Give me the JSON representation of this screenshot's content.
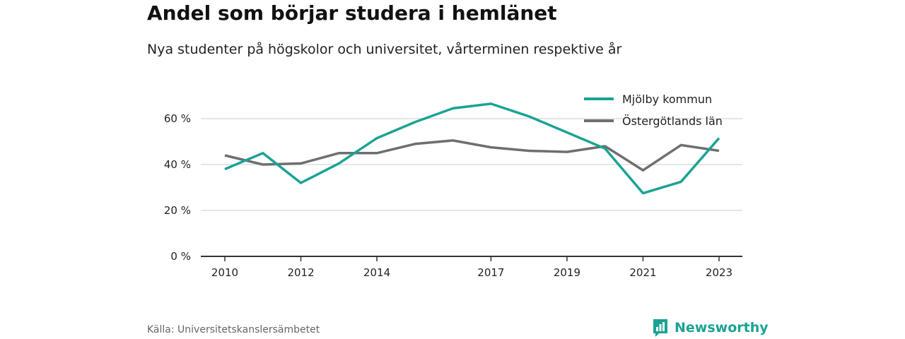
{
  "title": "Andel som börjar studera i hemlänet",
  "subtitle": "Nya studenter på högskolor och universitet, vårterminen respektive år",
  "source": "Källa: Universitetskanslersämbetet",
  "brand": {
    "name": "Newsworthy",
    "icon": "newsworthy-logo-icon",
    "color": "#1aa394"
  },
  "chart_data": {
    "type": "line",
    "x": [
      2010,
      2011,
      2012,
      2013,
      2014,
      2015,
      2016,
      2017,
      2018,
      2019,
      2020,
      2021,
      2022,
      2023
    ],
    "x_ticks": [
      "2010",
      "2012",
      "2014",
      "2017",
      "2019",
      "2021",
      "2023"
    ],
    "y_ticks": [
      "0 %",
      "20 %",
      "40 %",
      "60 %"
    ],
    "ylim": [
      0,
      70
    ],
    "grid": true,
    "legend_position": "top-right",
    "series": [
      {
        "name": "Mjölby kommun",
        "color": "#1aa394",
        "values": [
          38,
          45,
          32,
          40.5,
          51.5,
          58.5,
          64.5,
          66.5,
          61,
          54,
          47,
          27.5,
          32.5,
          51.5
        ]
      },
      {
        "name": "Östergötlands län",
        "color": "#6e6e73",
        "values": [
          44,
          40,
          40.5,
          45,
          45,
          49,
          50.5,
          47.5,
          46,
          45.5,
          48,
          37.5,
          48.5,
          46
        ]
      }
    ]
  }
}
